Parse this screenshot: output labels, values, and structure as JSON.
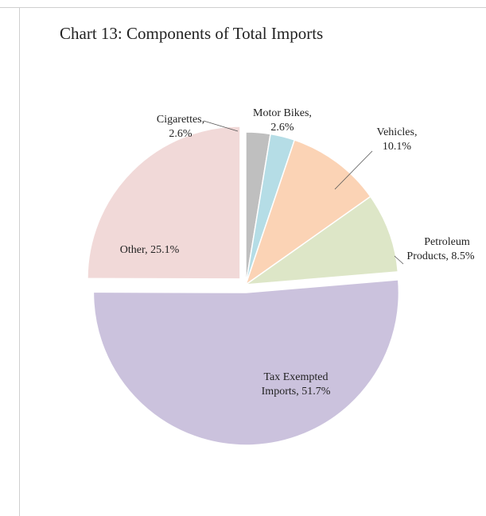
{
  "chart_data": {
    "type": "pie",
    "title": "Chart 13: Components of Total Imports",
    "slices": [
      {
        "name": "Cigarettes",
        "value": 2.6,
        "label_lines": [
          "Cigarettes,",
          "2.6%"
        ],
        "color": "#bfbfbf"
      },
      {
        "name": "Motor Bikes",
        "value": 2.6,
        "label_lines": [
          "Motor Bikes,",
          "2.6%"
        ],
        "color": "#b5dde6"
      },
      {
        "name": "Vehicles",
        "value": 10.1,
        "label_lines": [
          "Vehicles,",
          "10.1%"
        ],
        "color": "#fbd3b5"
      },
      {
        "name": "Petroleum Products",
        "value": 8.5,
        "label_lines": [
          "Petroleum",
          "Products, 8.5%"
        ],
        "color": "#dde6c7"
      },
      {
        "name": "Tax Exempted Imports",
        "value": 51.7,
        "label_lines": [
          "Tax Exempted",
          "Imports, 51.7%"
        ],
        "color": "#cbc2dd"
      },
      {
        "name": "Other",
        "value": 25.1,
        "label_lines": [
          "Other, 25.1%"
        ],
        "color": "#f1d9d8"
      }
    ],
    "legend": "none",
    "start_angle": "12 o'clock",
    "direction": "clockwise"
  }
}
